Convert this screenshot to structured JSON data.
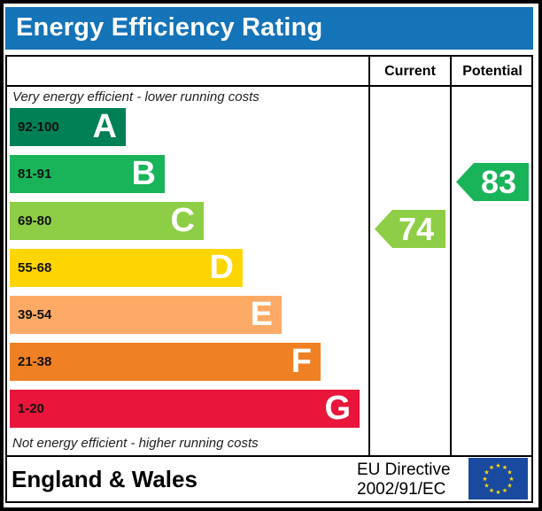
{
  "title": "Energy Efficiency Rating",
  "columns": {
    "current": "Current",
    "potential": "Potential"
  },
  "top_note": "Very energy efficient - lower running costs",
  "bottom_note": "Not energy efficient - higher running costs",
  "footer": {
    "region": "England & Wales",
    "directive_line1": "EU Directive",
    "directive_line2": "2002/91/EC"
  },
  "icons": {
    "eu_flag": "eu-flag-icon"
  },
  "colors": {
    "title_bar": "#1573b8",
    "band_A": "#008054",
    "band_B": "#19b459",
    "band_C": "#8dce46",
    "band_D": "#ffd500",
    "band_E": "#fcaa65",
    "band_F": "#ef8023",
    "band_G": "#e9153b"
  },
  "chart_data": {
    "type": "bar",
    "bands": [
      {
        "letter": "A",
        "range": "92-100",
        "color": "#008054"
      },
      {
        "letter": "B",
        "range": "81-91",
        "color": "#19b459"
      },
      {
        "letter": "C",
        "range": "69-80",
        "color": "#8dce46"
      },
      {
        "letter": "D",
        "range": "55-68",
        "color": "#ffd500"
      },
      {
        "letter": "E",
        "range": "39-54",
        "color": "#fcaa65"
      },
      {
        "letter": "F",
        "range": "21-38",
        "color": "#ef8023"
      },
      {
        "letter": "G",
        "range": "1-20",
        "color": "#e9153b"
      }
    ],
    "current": {
      "value": 74,
      "band": "C",
      "color": "#8dce46"
    },
    "potential": {
      "value": 83,
      "band": "B",
      "color": "#19b459"
    }
  }
}
